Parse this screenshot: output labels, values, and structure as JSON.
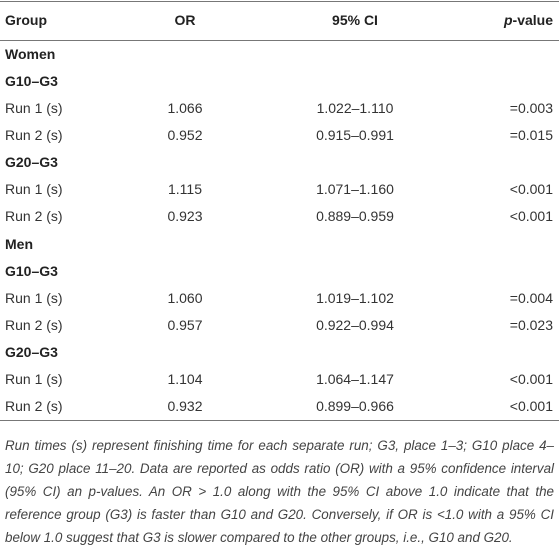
{
  "table": {
    "header": [
      "Group",
      "OR",
      "95% CI",
      "p-value"
    ],
    "rows": [
      [
        "Women"
      ],
      [
        "G10–G3"
      ],
      [
        "Run 1 (s)",
        "1.066",
        "1.022–1.110",
        "=0.003"
      ],
      [
        "Run 2 (s)",
        "0.952",
        "0.915–0.991",
        "=0.015"
      ],
      [
        "G20–G3"
      ],
      [
        "Run 1 (s)",
        "1.115",
        "1.071–1.160",
        "<0.001"
      ],
      [
        "Run 2 (s)",
        "0.923",
        "0.889–0.959",
        "<0.001"
      ],
      [
        "Men"
      ],
      [
        "G10–G3"
      ],
      [
        "Run 1 (s)",
        "1.060",
        "1.019–1.102",
        "=0.004"
      ],
      [
        "Run 2 (s)",
        "0.957",
        "0.922–0.994",
        "=0.023"
      ],
      [
        "G20–G3"
      ],
      [
        "Run 1 (s)",
        "1.104",
        "1.064–1.147",
        "<0.001"
      ],
      [
        "Run 2 (s)",
        "0.932",
        "0.899–0.966",
        "<0.001"
      ]
    ],
    "footnote": "Run times (s) represent finishing time for each separate run; G3, place 1–3; G10 place 4–10; G20 place 11–20. Data are reported as odds ratio (OR) with a 95% confidence interval (95% CI) an p-values. An OR > 1.0 along with the 95% CI above 1.0 indicate that the reference group (G3) is faster than G10 and G20. Conversely, if OR is <1.0 with a 95% CI below 1.0 suggest that G3 is slower compared to the other groups, i.e., G10 and G20."
  }
}
